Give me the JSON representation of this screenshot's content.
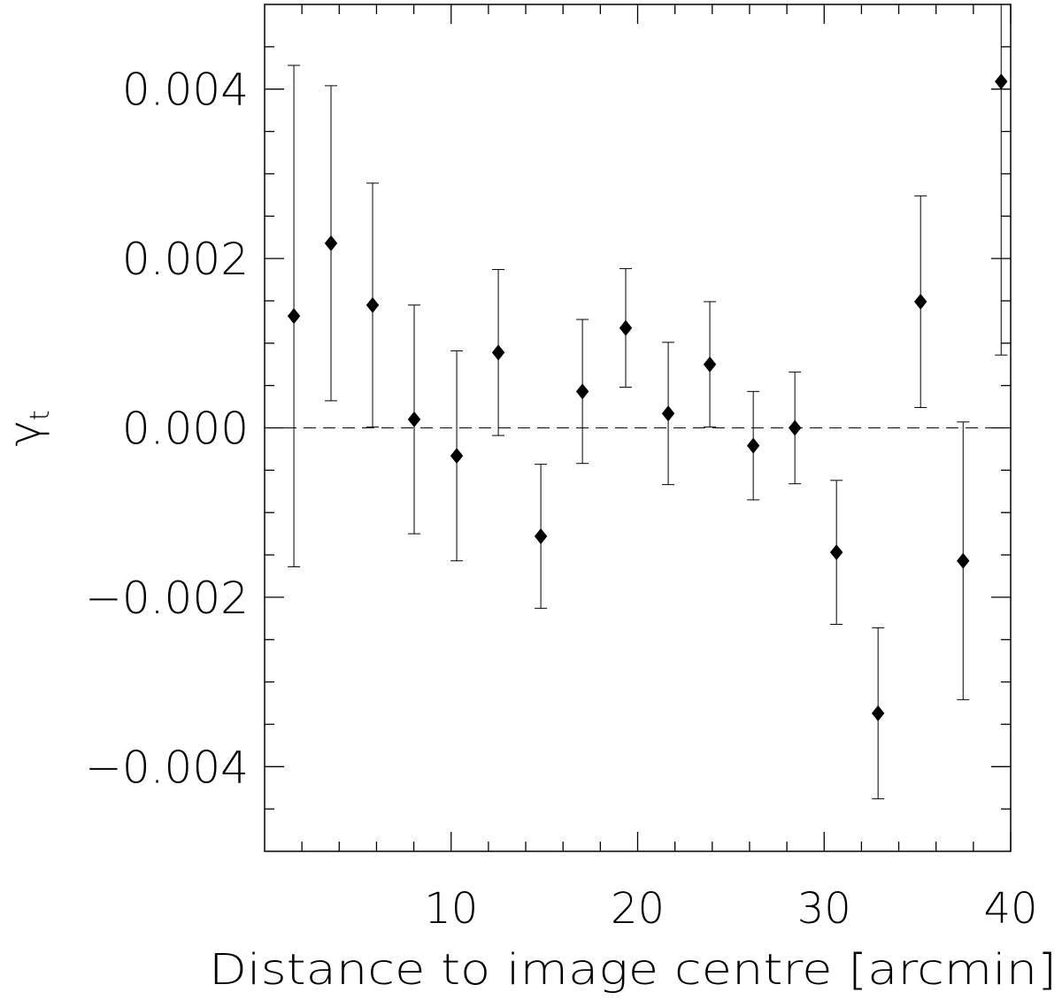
{
  "chart_data": {
    "type": "scatter",
    "xlabel": "Distance to image centre [arcmin]",
    "ylabel": {
      "symbol": "γ",
      "subscript": "t"
    },
    "x": [
      1.57,
      3.56,
      5.79,
      8.02,
      10.3,
      12.53,
      14.81,
      17.04,
      19.36,
      21.64,
      23.87,
      26.2,
      28.43,
      30.66,
      32.89,
      35.17,
      37.45,
      39.49
    ],
    "values": [
      0.00132,
      0.00218,
      0.00145,
      0.0001,
      -0.00033,
      0.00089,
      -0.00128,
      0.00043,
      0.00118,
      0.00017,
      0.00075,
      -0.00021,
      0,
      -0.00147,
      -0.00337,
      0.00149,
      -0.00157,
      0.00409
    ],
    "errors": [
      0.00296,
      0.00186,
      0.00144,
      0.00135,
      0.00124,
      0.00098,
      0.00085,
      0.00085,
      0.0007,
      0.00084,
      0.00074,
      0.00064,
      0.00066,
      0.00085,
      0.00101,
      0.00125,
      0.00164,
      0.00323
    ],
    "color": "#000000",
    "xlim": [
      0,
      40
    ],
    "ylim": [
      -0.005,
      0.005
    ],
    "xticks": [
      10,
      20,
      30,
      40
    ],
    "yticks": [
      {
        "value": -0.004,
        "label": "−0.004"
      },
      {
        "value": -0.002,
        "label": "−0.002"
      },
      {
        "value": 0,
        "label": "0.000"
      },
      0.002,
      0.004
    ],
    "xticks_minor": [
      2,
      4,
      6,
      8,
      12,
      14,
      16,
      18,
      22,
      24,
      26,
      28,
      32,
      34,
      36,
      38
    ],
    "yticks_minor": [
      -0.0045,
      -0.0035,
      -0.003,
      -0.0025,
      -0.0015,
      -0.001,
      -0.0005,
      0.0005,
      0.001,
      0.0015,
      0.0025,
      0.003,
      0.0035,
      0.0045
    ],
    "reference_line": 0,
    "grid": false
  }
}
